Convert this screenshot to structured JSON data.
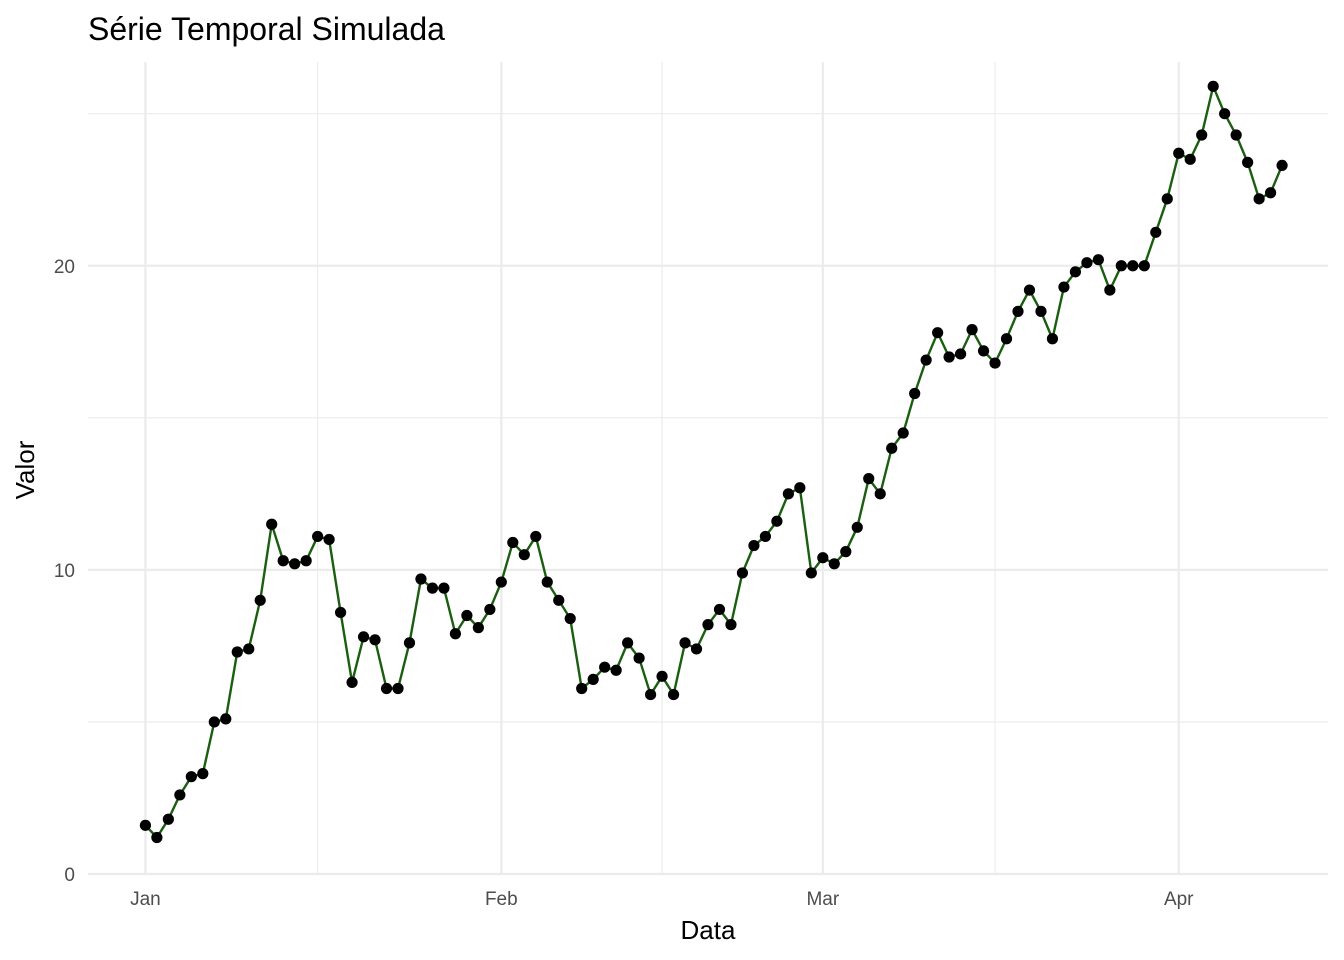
{
  "chart_data": {
    "type": "line",
    "title": "Série Temporal Simulada",
    "xlabel": "Data",
    "ylabel": "Valor",
    "x_start": "2023-01-01",
    "x_end": "2023-04-10",
    "xlim": [
      "2022-12-27",
      "2023-04-14"
    ],
    "ylim": [
      0,
      26.7
    ],
    "x_ticks": [
      {
        "date": "2023-01-01",
        "label": "Jan"
      },
      {
        "date": "2023-02-01",
        "label": "Feb"
      },
      {
        "date": "2023-03-01",
        "label": "Mar"
      },
      {
        "date": "2023-04-01",
        "label": "Apr"
      }
    ],
    "x_minor_ticks": [
      "2023-01-16",
      "2023-02-15",
      "2023-03-16"
    ],
    "y_ticks": [
      0,
      10,
      20
    ],
    "y_minor_ticks": [
      5,
      15,
      25
    ],
    "grid": true,
    "line_color": "#1a5e0f",
    "point_color": "#000000",
    "series": [
      {
        "values": [
          1.6,
          1.2,
          1.8,
          2.6,
          3.2,
          3.3,
          5.0,
          5.1,
          7.3,
          7.4,
          9.0,
          11.5,
          10.3,
          10.2,
          10.3,
          11.1,
          11.0,
          8.6,
          6.3,
          7.8,
          7.7,
          6.1,
          6.1,
          7.6,
          9.7,
          9.4,
          9.4,
          7.9,
          8.5,
          8.1,
          8.7,
          9.6,
          10.9,
          10.5,
          11.1,
          9.6,
          9.0,
          8.4,
          6.1,
          6.4,
          6.8,
          6.7,
          7.6,
          7.1,
          5.9,
          6.5,
          5.9,
          7.6,
          7.4,
          8.2,
          8.7,
          8.2,
          9.9,
          10.8,
          11.1,
          11.6,
          12.5,
          12.7,
          9.9,
          10.4,
          10.2,
          10.6,
          11.4,
          13.0,
          12.5,
          14.0,
          14.5,
          15.8,
          16.9,
          17.8,
          17.0,
          17.1,
          17.9,
          17.2,
          16.8,
          17.6,
          18.5,
          19.2,
          18.5,
          17.6,
          19.3,
          19.8,
          20.1,
          20.2,
          19.2,
          20.0,
          20.0,
          20.0,
          21.1,
          22.2,
          23.7,
          23.5,
          24.3,
          25.9,
          25.0,
          24.3,
          23.4,
          22.2,
          22.4,
          23.3
        ]
      }
    ]
  }
}
